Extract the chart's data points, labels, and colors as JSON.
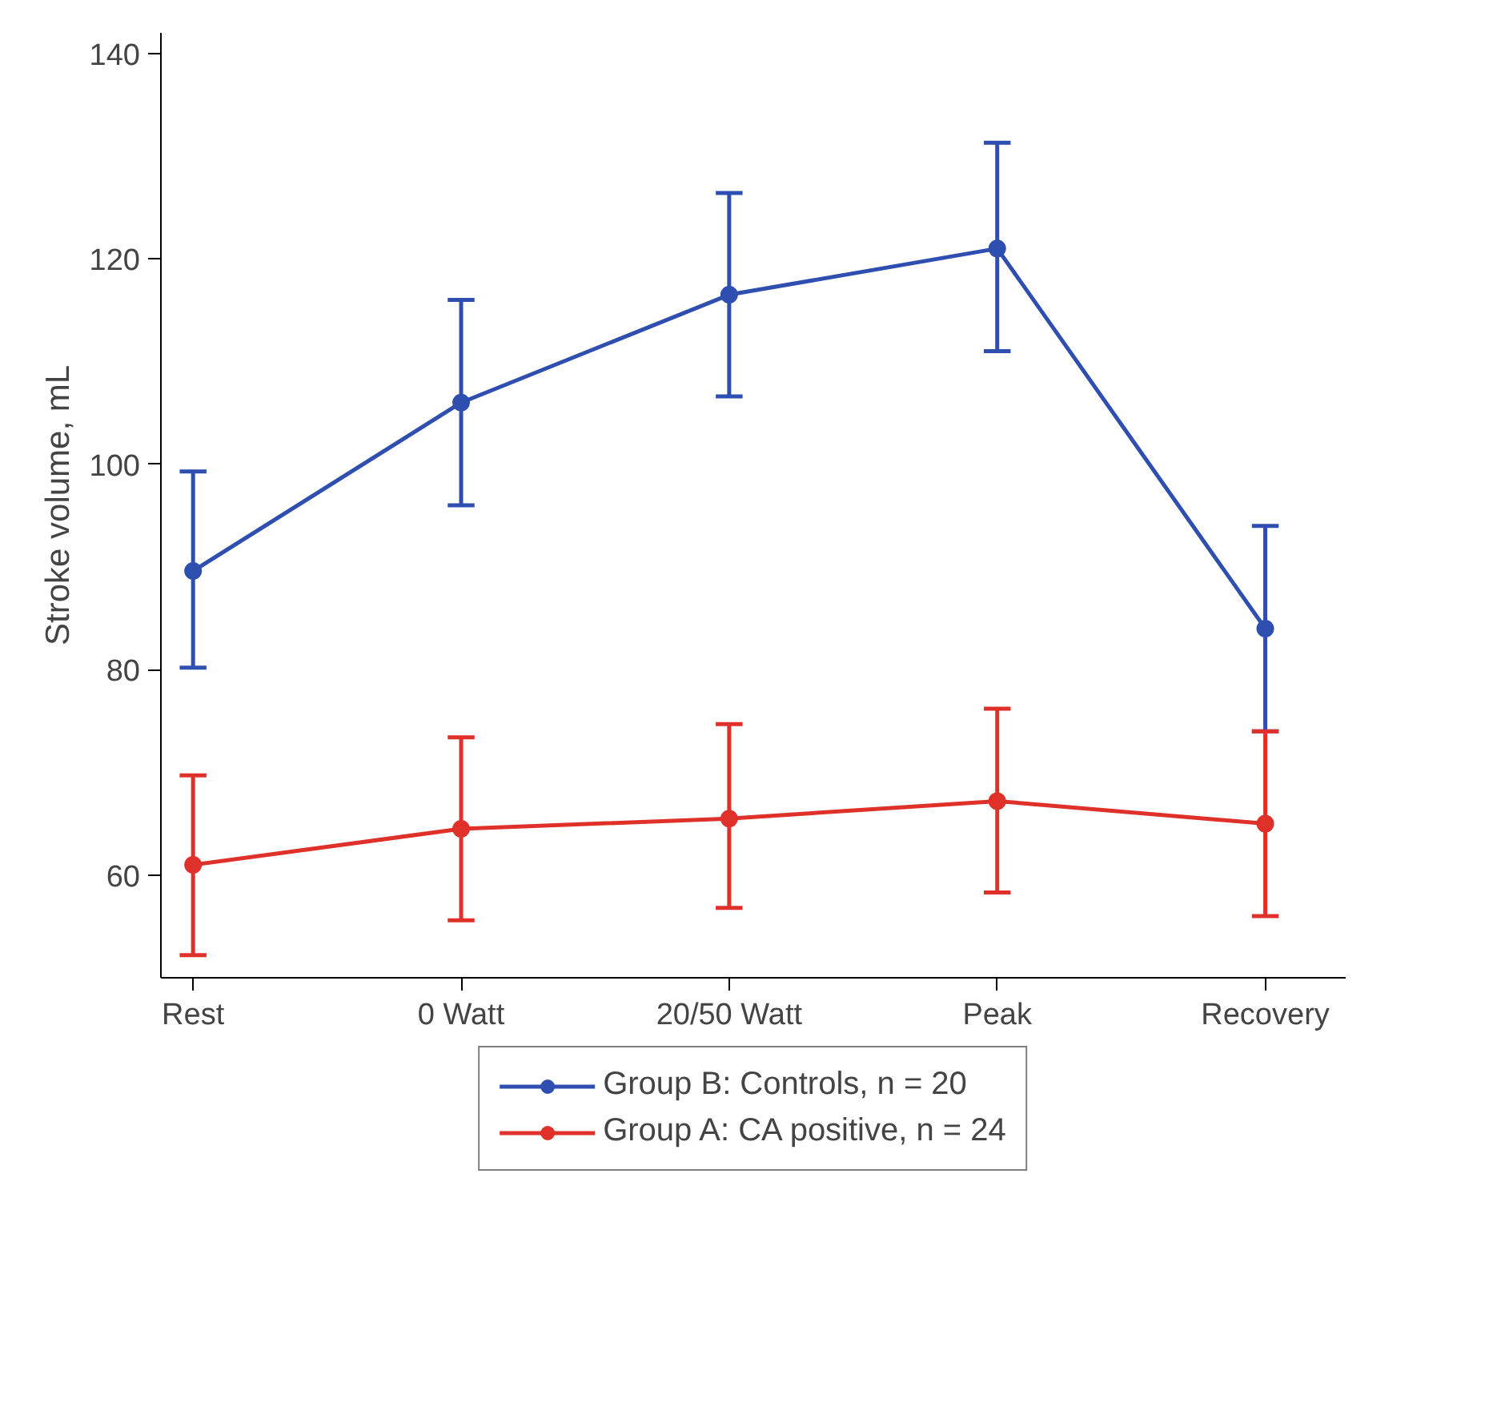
{
  "chart_data": {
    "type": "line",
    "ylabel": "Stroke volume, mL",
    "categories": [
      "Rest",
      "0 Watt",
      "20/50 Watt",
      "Peak",
      "Recovery"
    ],
    "series": [
      {
        "name": "Group B: Controls, n = 20",
        "color": "#2f4fb0",
        "values": [
          89.6,
          106,
          116.5,
          121,
          84
        ],
        "errors": [
          [
            80.2,
            99.3
          ],
          [
            96,
            116
          ],
          [
            106.6,
            126.4
          ],
          [
            111,
            131.3
          ],
          [
            74,
            94
          ]
        ]
      },
      {
        "name": "Group A: CA positive, n = 24",
        "color": "#e0302a",
        "values": [
          61,
          64.5,
          65.5,
          67.2,
          65
        ],
        "errors": [
          [
            52.2,
            69.7
          ],
          [
            55.6,
            73.4
          ],
          [
            56.8,
            74.7
          ],
          [
            58.3,
            76.2
          ],
          [
            56,
            74
          ]
        ]
      }
    ],
    "ylim": [
      50,
      142
    ],
    "yticks": [
      60,
      80,
      100,
      120,
      140
    ],
    "grid": false,
    "legend": "bottom",
    "marker": "circle",
    "line_style": "solid"
  }
}
